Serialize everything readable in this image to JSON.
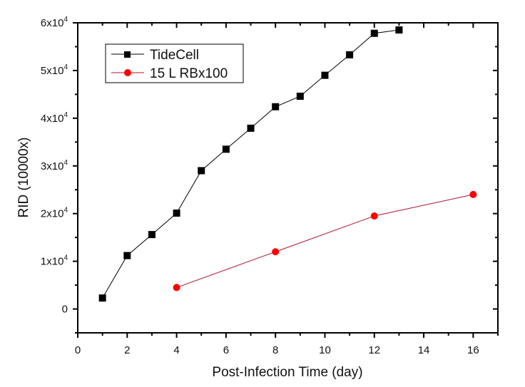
{
  "chart_data": {
    "type": "line",
    "title": "",
    "xlabel": "Post-Infection Time (day)",
    "ylabel": "RID (10000x)",
    "xlim": [
      0,
      17
    ],
    "ylim": [
      -5000,
      60000
    ],
    "xticks": [
      0,
      2,
      4,
      6,
      8,
      10,
      12,
      14,
      16
    ],
    "xtick_labels": [
      "0",
      "2",
      "4",
      "6",
      "8",
      "10",
      "12",
      "14",
      "16"
    ],
    "yticks": [
      0,
      10000,
      20000,
      30000,
      40000,
      50000,
      60000
    ],
    "ytick_labels": [
      {
        "mantissa": "0",
        "exp": ""
      },
      {
        "mantissa": "1x10",
        "exp": "4"
      },
      {
        "mantissa": "2x10",
        "exp": "4"
      },
      {
        "mantissa": "3x10",
        "exp": "4"
      },
      {
        "mantissa": "4x10",
        "exp": "4"
      },
      {
        "mantissa": "5x10",
        "exp": "4"
      },
      {
        "mantissa": "6x10",
        "exp": "4"
      }
    ],
    "grid": false,
    "legend_position": "top-left",
    "series": [
      {
        "name": "TideCell",
        "color": "#000000",
        "marker": "square",
        "x": [
          1,
          2,
          3,
          4,
          5,
          6,
          7,
          8,
          9,
          10,
          11,
          12,
          13
        ],
        "y": [
          2300,
          11200,
          15600,
          20100,
          29000,
          33500,
          37900,
          42400,
          44600,
          49000,
          53300,
          57800,
          58500
        ]
      },
      {
        "name": "15 L RBx100",
        "color": "#ff0000",
        "line_color": "#b0102a",
        "marker": "circle",
        "x": [
          4,
          8,
          12,
          16
        ],
        "y": [
          4500,
          12000,
          19500,
          24000
        ]
      }
    ]
  }
}
